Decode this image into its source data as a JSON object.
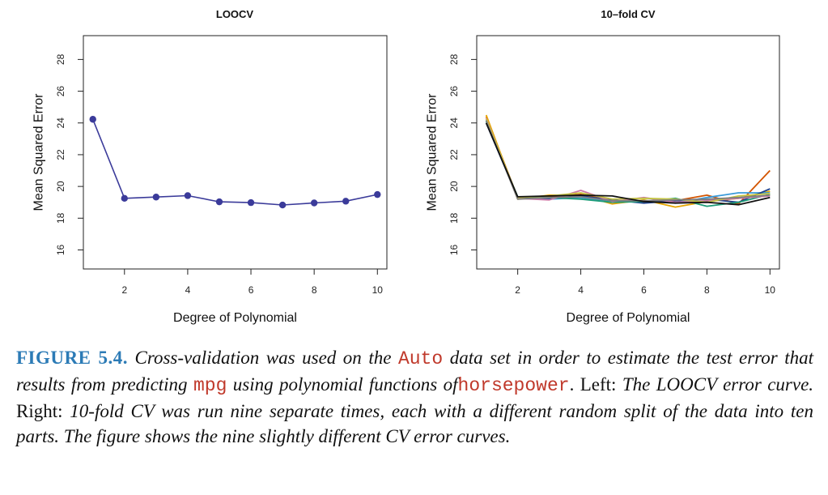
{
  "chart_data": [
    {
      "type": "line",
      "title": "LOOCV",
      "xlabel": "Degree of Polynomial",
      "ylabel": "Mean Squared Error",
      "xlim": [
        0.7,
        10.3
      ],
      "ylim": [
        14.8,
        29.5
      ],
      "xticks": [
        2,
        4,
        6,
        8,
        10
      ],
      "yticks": [
        16,
        18,
        20,
        22,
        24,
        26,
        28
      ],
      "grid": false,
      "markers": true,
      "x": [
        1,
        2,
        3,
        4,
        5,
        6,
        7,
        8,
        9,
        10
      ],
      "series": [
        {
          "color": "#3b3b9a",
          "values": [
            24.23,
            19.25,
            19.33,
            19.42,
            19.03,
            18.98,
            18.83,
            18.96,
            19.07,
            19.49
          ]
        }
      ]
    },
    {
      "type": "line",
      "title": "10–fold CV",
      "xlabel": "Degree of Polynomial",
      "ylabel": "Mean Squared Error",
      "xlim": [
        0.7,
        10.3
      ],
      "ylim": [
        14.8,
        29.5
      ],
      "xticks": [
        2,
        4,
        6,
        8,
        10
      ],
      "yticks": [
        16,
        18,
        20,
        22,
        24,
        26,
        28
      ],
      "grid": false,
      "markers": false,
      "x": [
        1,
        2,
        3,
        4,
        5,
        6,
        7,
        8,
        9,
        10
      ],
      "series": [
        {
          "color": "#d35400",
          "values": [
            24.4,
            19.3,
            19.35,
            19.5,
            19.1,
            19.0,
            19.1,
            19.45,
            18.9,
            21.0
          ]
        },
        {
          "color": "#e6a500",
          "values": [
            24.5,
            19.2,
            19.45,
            19.45,
            18.9,
            19.15,
            18.7,
            19.05,
            19.25,
            19.7
          ]
        },
        {
          "color": "#3a9ad9",
          "values": [
            24.2,
            19.25,
            19.2,
            19.3,
            19.0,
            19.1,
            18.95,
            19.3,
            19.6,
            19.6
          ]
        },
        {
          "color": "#1a3f8c",
          "values": [
            24.0,
            19.3,
            19.25,
            19.4,
            19.15,
            18.95,
            19.1,
            19.2,
            19.0,
            19.85
          ]
        },
        {
          "color": "#1e9c78",
          "values": [
            24.1,
            19.35,
            19.3,
            19.2,
            19.0,
            19.05,
            19.25,
            18.75,
            19.0,
            19.5
          ]
        },
        {
          "color": "#cc79a7",
          "values": [
            24.3,
            19.25,
            19.15,
            19.75,
            19.05,
            19.3,
            19.0,
            19.1,
            19.25,
            19.4
          ]
        },
        {
          "color": "#c4c444",
          "values": [
            24.25,
            19.3,
            19.4,
            19.6,
            19.2,
            19.25,
            19.2,
            19.0,
            19.4,
            19.55
          ]
        },
        {
          "color": "#7f7f7f",
          "values": [
            24.15,
            19.2,
            19.3,
            19.35,
            19.1,
            19.1,
            19.15,
            19.2,
            19.3,
            19.45
          ]
        },
        {
          "color": "#111111",
          "values": [
            24.0,
            19.35,
            19.4,
            19.45,
            19.4,
            19.05,
            18.95,
            19.0,
            18.85,
            19.3
          ]
        }
      ]
    }
  ],
  "caption": {
    "label": "FIGURE 5.4.",
    "text1": "Cross-validation was used on the",
    "code1": "Auto",
    "text2": "data set in order to estimate the test error that results from predicting",
    "code2": "mpg",
    "text3": "using polynomial functions of",
    "code3": "horsepower",
    "text4": ".",
    "left_word": "Left:",
    "text5": "The LOOCV error curve.",
    "right_word": "Right:",
    "text6": "10-fold CV was run nine separate times, each with a different random split of the data into ten parts. The figure shows the nine slightly different CV error curves."
  }
}
